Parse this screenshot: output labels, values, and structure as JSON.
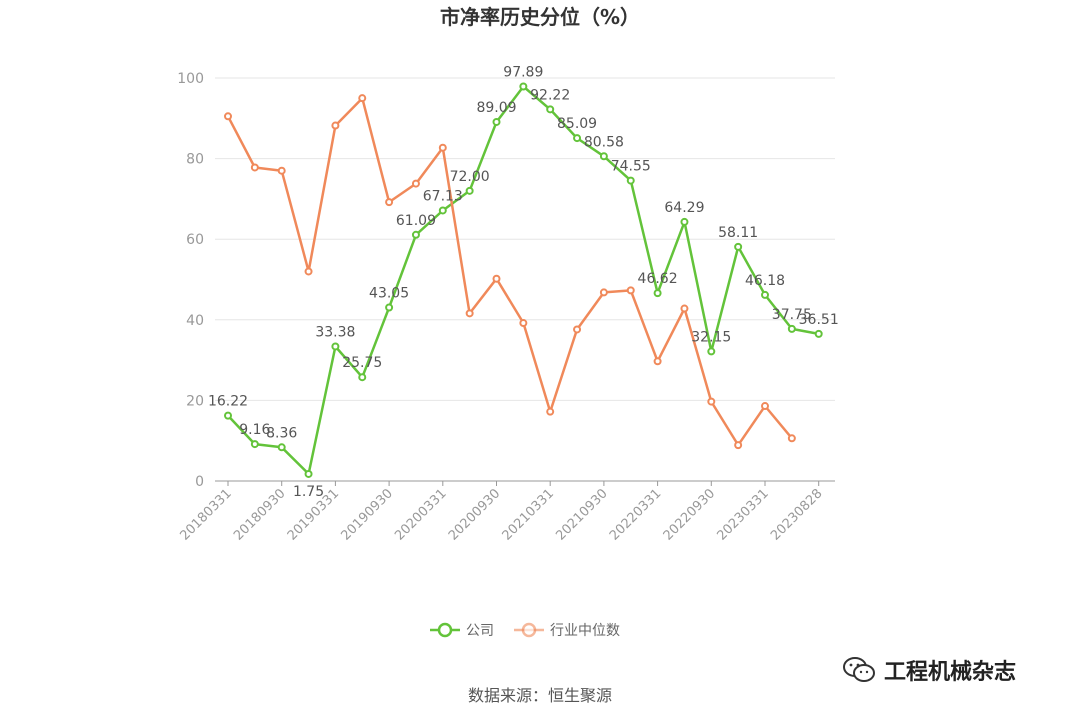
{
  "chart_data": {
    "type": "line",
    "title": "市净率历史分位（%）",
    "ylim": [
      0,
      100
    ],
    "yticks": [
      0,
      20,
      40,
      60,
      80,
      100
    ],
    "x_tick_labels": [
      "20180331",
      "20180930",
      "20190331",
      "20190930",
      "20200331",
      "20200930",
      "20210331",
      "20210930",
      "20220331",
      "20220930",
      "20230331",
      "20230828"
    ],
    "x": [
      "20180331",
      "20180630",
      "20180930",
      "20181231",
      "20190331",
      "20190630",
      "20190930",
      "20191231",
      "20200331",
      "20200630",
      "20200930",
      "20201231",
      "20210331",
      "20210630",
      "20210930",
      "20211231",
      "20220331",
      "20220630",
      "20220930",
      "20221231",
      "20230331",
      "20230630",
      "20230828"
    ],
    "series": [
      {
        "name": "公司",
        "color": "#63c33a",
        "values": [
          16.22,
          9.16,
          8.36,
          1.75,
          33.38,
          25.75,
          43.05,
          61.09,
          67.13,
          72.0,
          89.09,
          97.89,
          92.22,
          85.09,
          80.58,
          74.55,
          46.62,
          64.29,
          32.15,
          58.11,
          46.18,
          37.75,
          36.51
        ],
        "labels": [
          "16.22",
          "9.16",
          "8.36",
          "1.75",
          "33.38",
          "25.75",
          "43.05",
          "61.09",
          "67.13",
          "72.00",
          "89.09",
          "97.89",
          "92.22",
          "85.09",
          "80.58",
          "74.55",
          "46.62",
          "64.29",
          "32.15",
          "58.11",
          "46.18",
          "37.75",
          "36.51"
        ]
      },
      {
        "name": "行业中位数",
        "color": "#f0895a",
        "values": [
          90.5,
          77.8,
          77.0,
          52.0,
          88.2,
          95.0,
          69.2,
          73.8,
          82.7,
          41.6,
          50.2,
          39.2,
          17.2,
          37.6,
          46.8,
          47.3,
          29.7,
          42.8,
          19.7,
          8.9,
          18.6,
          10.6,
          null
        ]
      }
    ],
    "grid": true,
    "legend": "bottom-center"
  },
  "footer": {
    "source": "数据来源：恒生聚源",
    "watermark": "工程机械杂志"
  }
}
